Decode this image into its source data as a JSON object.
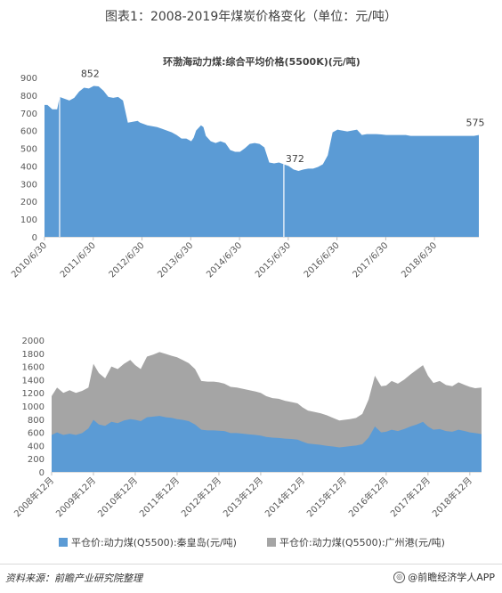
{
  "figure_title": "图表1：2008-2019年煤炭价格变化（单位：元/吨）",
  "source": "资料来源：前瞻产业研究院整理",
  "app_credit": "@前瞻经济学人APP",
  "app_icon_glyph": "◎",
  "colors": {
    "blue": "#5b9bd5",
    "gray": "#a5a5a5",
    "grid": "#d9d9d9",
    "axis": "#bfbfbf"
  },
  "chart_data": [
    {
      "type": "area",
      "title": "环渤海动力煤:综合平均价格(5500K)(元/吨)",
      "ylim": [
        0,
        900
      ],
      "yticks": [
        0,
        100,
        200,
        300,
        400,
        500,
        600,
        700,
        800,
        900
      ],
      "x_labels": [
        "2010/6/30",
        "2011/6/30",
        "2012/6/30",
        "2013/6/30",
        "2014/6/30",
        "2015/6/30",
        "2016/6/30",
        "2017/6/30",
        "2018/6/30"
      ],
      "x_label_positions": [
        2010.49,
        2011.49,
        2012.49,
        2013.49,
        2014.49,
        2015.49,
        2016.49,
        2017.49,
        2018.49
      ],
      "x_range": [
        2010.49,
        2019.4
      ],
      "x": [
        2010.49,
        2010.55,
        2010.65,
        2010.75,
        2010.8,
        2010.9,
        2011.0,
        2011.1,
        2011.2,
        2011.3,
        2011.4,
        2011.5,
        2011.6,
        2011.7,
        2011.8,
        2011.9,
        2012.0,
        2012.1,
        2012.2,
        2012.3,
        2012.4,
        2012.45,
        2012.5,
        2012.6,
        2012.7,
        2012.8,
        2012.9,
        2013.0,
        2013.1,
        2013.2,
        2013.3,
        2013.4,
        2013.5,
        2013.55,
        2013.6,
        2013.7,
        2013.75,
        2013.8,
        2013.9,
        2014.0,
        2014.1,
        2014.2,
        2014.3,
        2014.4,
        2014.5,
        2014.6,
        2014.7,
        2014.8,
        2014.9,
        2015.0,
        2015.1,
        2015.2,
        2015.3,
        2015.4,
        2015.5,
        2015.6,
        2015.7,
        2015.8,
        2015.9,
        2016.0,
        2016.1,
        2016.2,
        2016.3,
        2016.4,
        2016.5,
        2016.6,
        2016.7,
        2016.8,
        2016.9,
        2017.0,
        2017.1,
        2017.2,
        2017.3,
        2017.4,
        2017.5,
        2017.6,
        2017.7,
        2017.8,
        2017.9,
        2018.0,
        2018.1,
        2018.2,
        2018.3,
        2018.4,
        2018.5,
        2018.6,
        2018.7,
        2018.8,
        2018.9,
        2019.0,
        2019.1,
        2019.2,
        2019.3,
        2019.4
      ],
      "values": [
        745,
        745,
        720,
        720,
        790,
        780,
        770,
        785,
        820,
        842,
        838,
        852,
        850,
        825,
        790,
        785,
        790,
        770,
        645,
        650,
        655,
        645,
        640,
        630,
        625,
        620,
        610,
        600,
        590,
        575,
        555,
        555,
        540,
        560,
        600,
        630,
        620,
        570,
        540,
        530,
        540,
        530,
        490,
        480,
        480,
        500,
        525,
        530,
        525,
        505,
        420,
        415,
        420,
        410,
        400,
        380,
        372,
        380,
        385,
        385,
        395,
        410,
        460,
        590,
        605,
        600,
        595,
        600,
        605,
        575,
        580,
        580,
        580,
        578,
        575,
        575,
        575,
        575,
        575,
        570,
        570,
        570,
        570,
        570,
        570,
        570,
        570,
        570,
        570,
        570,
        570,
        570,
        570,
        575
      ],
      "annotations": [
        {
          "text": "852",
          "x": 2011.5,
          "y": 852
        },
        {
          "text": "372",
          "x": 2015.7,
          "y": 372
        },
        {
          "text": "575",
          "x": 2019.4,
          "y": 575
        }
      ],
      "gaps_at_x": [
        2010.8,
        2015.4
      ]
    },
    {
      "type": "area",
      "ylim": [
        0,
        2000
      ],
      "yticks": [
        0,
        200,
        400,
        600,
        800,
        1000,
        1200,
        1400,
        1600,
        1800,
        2000
      ],
      "x_labels": [
        "2008年12月",
        "2009年12月",
        "2010年12月",
        "2011年12月",
        "2012年12月",
        "2013年12月",
        "2014年12月",
        "2015年12月",
        "2016年12月",
        "2017年12月",
        "2018年12月"
      ],
      "x_label_positions": [
        2008.92,
        2009.92,
        2010.92,
        2011.92,
        2012.92,
        2013.92,
        2014.92,
        2015.92,
        2016.92,
        2017.92,
        2018.92
      ],
      "x_range": [
        2008.92,
        2019.2
      ],
      "x": [
        2008.92,
        2009.05,
        2009.2,
        2009.35,
        2009.5,
        2009.65,
        2009.8,
        2009.92,
        2010.05,
        2010.2,
        2010.35,
        2010.5,
        2010.65,
        2010.8,
        2010.92,
        2011.05,
        2011.2,
        2011.35,
        2011.5,
        2011.65,
        2011.8,
        2011.92,
        2012.05,
        2012.2,
        2012.35,
        2012.5,
        2012.65,
        2012.8,
        2012.92,
        2013.05,
        2013.2,
        2013.35,
        2013.5,
        2013.65,
        2013.8,
        2013.92,
        2014.05,
        2014.2,
        2014.35,
        2014.5,
        2014.65,
        2014.8,
        2014.92,
        2015.05,
        2015.2,
        2015.35,
        2015.5,
        2015.65,
        2015.8,
        2015.92,
        2016.05,
        2016.2,
        2016.35,
        2016.5,
        2016.65,
        2016.8,
        2016.92,
        2017.05,
        2017.2,
        2017.35,
        2017.5,
        2017.65,
        2017.8,
        2017.92,
        2018.05,
        2018.2,
        2018.35,
        2018.5,
        2018.65,
        2018.8,
        2018.92,
        2019.05,
        2019.2
      ],
      "series": [
        {
          "name": "平仓价:动力煤(Q5500):秦皇岛(元/吨)",
          "color": "#5b9bd5",
          "values": [
            560,
            600,
            560,
            580,
            560,
            590,
            660,
            790,
            720,
            700,
            760,
            740,
            780,
            800,
            790,
            770,
            830,
            840,
            850,
            830,
            820,
            800,
            790,
            770,
            720,
            640,
            630,
            630,
            625,
            620,
            590,
            590,
            580,
            570,
            560,
            550,
            530,
            520,
            515,
            505,
            500,
            490,
            460,
            430,
            420,
            410,
            395,
            385,
            372,
            380,
            390,
            400,
            420,
            520,
            690,
            600,
            610,
            640,
            620,
            650,
            690,
            720,
            760,
            690,
            640,
            650,
            620,
            610,
            640,
            620,
            600,
            590,
            575
          ]
        },
        {
          "name": "平仓价:动力煤(Q5500):广州港(元/吨)",
          "color": "#a5a5a5",
          "values": [
            1150,
            1280,
            1200,
            1240,
            1200,
            1230,
            1280,
            1640,
            1500,
            1420,
            1600,
            1560,
            1640,
            1700,
            1620,
            1560,
            1750,
            1780,
            1820,
            1790,
            1760,
            1740,
            1700,
            1650,
            1560,
            1380,
            1370,
            1370,
            1360,
            1340,
            1290,
            1280,
            1260,
            1240,
            1220,
            1200,
            1150,
            1120,
            1110,
            1080,
            1060,
            1040,
            980,
            930,
            910,
            890,
            860,
            820,
            780,
            790,
            800,
            820,
            880,
            1100,
            1460,
            1300,
            1310,
            1380,
            1340,
            1400,
            1480,
            1550,
            1620,
            1460,
            1350,
            1380,
            1320,
            1300,
            1360,
            1320,
            1290,
            1270,
            1280
          ]
        }
      ]
    }
  ]
}
